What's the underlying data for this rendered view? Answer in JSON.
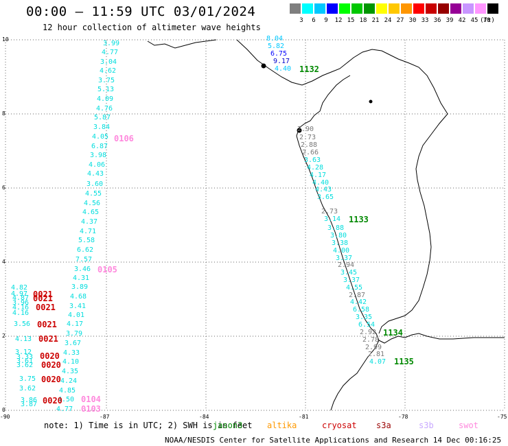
{
  "header": {
    "title": "00:00 – 11:59 UTC 03/01/2024",
    "subtitle": "12 hour collection of altimeter wave heights"
  },
  "legend": {
    "unit": "(ft)",
    "levels": [
      "3",
      "6",
      "9",
      "12",
      "15",
      "18",
      "21",
      "24",
      "27",
      "30",
      "33",
      "36",
      "39",
      "42",
      "45",
      "70"
    ],
    "colors": [
      "#7f7f7f",
      "#00ffff",
      "#00c8ff",
      "#0000ff",
      "#00ff00",
      "#00c800",
      "#009600",
      "#ffff00",
      "#ffc800",
      "#ff9600",
      "#ff0000",
      "#c80000",
      "#960000",
      "#960096",
      "#c896ff",
      "#ff96ff",
      "#000000"
    ]
  },
  "axes": {
    "x_ticks": [
      "-90",
      "-87",
      "-84",
      "-81",
      "-78",
      "-75"
    ],
    "y_ticks": [
      "10",
      "8",
      "6",
      "4",
      "2",
      "0"
    ]
  },
  "tracks": {
    "track_a": {
      "color": "#00dddd",
      "values": [
        "3.99",
        "4.77",
        "3.04",
        "4.62",
        "3.75",
        "5.13",
        "4.09",
        "4.76",
        "5.87",
        "3.84",
        "4.05",
        "6.87",
        "3.98",
        "4.06",
        "4.43",
        "3.60",
        "4.55",
        "4.56",
        "4.65",
        "4.37",
        "4.71",
        "5.58",
        "6.62",
        "7.57",
        "3.46",
        "4.31",
        "3.89",
        "4.68",
        "3.41",
        "4.01",
        "4.17",
        "3.79",
        "3.67",
        "4.33",
        "4.10",
        "4.35",
        "4.24",
        "4.85",
        "4.50",
        "4.77"
      ]
    },
    "track_b": {
      "color": "#00dddd",
      "values": [
        "4.82",
        "4.97",
        "4.87",
        "3.96",
        "4.16",
        "4.16",
        "3.56",
        "4.13",
        "3.12",
        "3.33",
        "3.61",
        "3.62",
        "3.75",
        "3.62",
        "3.86",
        "3.87"
      ]
    },
    "track_c": {
      "color": "#00dddd",
      "values": [
        "3.63",
        "4.28",
        "4.17",
        "4.40",
        "4.43",
        "3.65",
        "3.14",
        "3.88",
        "3.80",
        "3.38",
        "4.00",
        "3.37",
        "3.45",
        "3.37",
        "4.55",
        "4.42",
        "6.58",
        "3.35",
        "6.54",
        "4.07"
      ]
    },
    "track_c_gray": {
      "color": "#777777",
      "values": [
        "2.90",
        "2.73",
        "2.88",
        "2.66",
        "2.73",
        "2.94",
        "2.87",
        "2.92",
        "2.78",
        "2.99",
        "2.81"
      ]
    },
    "track_d": {
      "values": [
        "8.04",
        "5.82",
        "6.75",
        "9.17",
        "4.40"
      ]
    }
  },
  "pass_labels": [
    {
      "text": "1132",
      "color": "#008800"
    },
    {
      "text": "1133",
      "color": "#008800"
    },
    {
      "text": "1134",
      "color": "#008800"
    },
    {
      "text": "1135",
      "color": "#008800"
    },
    {
      "text": "0106",
      "color": "#ff88dd"
    },
    {
      "text": "0105",
      "color": "#ff88dd"
    },
    {
      "text": "0104",
      "color": "#ff88dd"
    },
    {
      "text": "0103",
      "color": "#ff88dd"
    },
    {
      "text": "0021",
      "color": "#cc0000"
    },
    {
      "text": "0021",
      "color": "#cc0000"
    },
    {
      "text": "0021",
      "color": "#cc0000"
    },
    {
      "text": "0021",
      "color": "#cc0000"
    },
    {
      "text": "0021",
      "color": "#cc0000"
    },
    {
      "text": "0020",
      "color": "#cc0000"
    },
    {
      "text": "0020",
      "color": "#cc0000"
    },
    {
      "text": "0020",
      "color": "#cc0000"
    },
    {
      "text": "0020",
      "color": "#cc0000"
    }
  ],
  "footer": {
    "note": "note: 1) Time is in UTC; 2) SWH is in feet",
    "satellites": [
      {
        "name": "jason3",
        "color": "#008800"
      },
      {
        "name": "altika",
        "color": "#ff9900"
      },
      {
        "name": "cryosat",
        "color": "#cc0000"
      },
      {
        "name": "s3a",
        "color": "#990000"
      },
      {
        "name": "s3b",
        "color": "#c8a8ff"
      },
      {
        "name": "swot",
        "color": "#ff88dd"
      }
    ],
    "credit": "NOAA/NESDIS Center for Satellite Applications and Research    14 Dec 00:16:25 UTC 2024"
  }
}
